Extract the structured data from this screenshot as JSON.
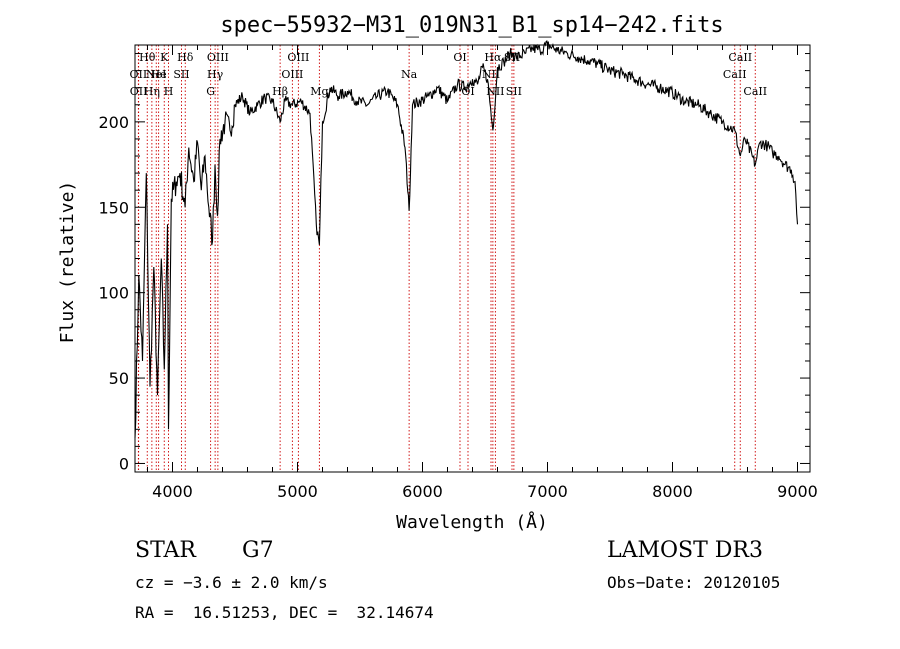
{
  "chart_data": {
    "type": "line",
    "title": "spec−55932−M31_019N31_B1_sp14−242.fits",
    "xlabel": "Wavelength (Å)",
    "ylabel": "Flux (relative)",
    "xlim": [
      3700,
      9100
    ],
    "ylim": [
      -5,
      245
    ],
    "xticks": [
      4000,
      5000,
      6000,
      7000,
      8000,
      9000
    ],
    "yticks": [
      0,
      50,
      100,
      150,
      200
    ],
    "grid": false,
    "series": [
      {
        "name": "spectrum",
        "x": [
          3700,
          3730,
          3760,
          3790,
          3820,
          3850,
          3880,
          3910,
          3934,
          3960,
          3968,
          3990,
          4030,
          4060,
          4101,
          4130,
          4170,
          4200,
          4230,
          4260,
          4290,
          4320,
          4340,
          4360,
          4380,
          4420,
          4460,
          4500,
          4560,
          4620,
          4680,
          4740,
          4800,
          4861,
          4900,
          4960,
          5030,
          5100,
          5150,
          5175,
          5200,
          5260,
          5330,
          5400,
          5480,
          5560,
          5640,
          5720,
          5800,
          5860,
          5893,
          5920,
          5980,
          6050,
          6120,
          6200,
          6280,
          6340,
          6400,
          6440,
          6480,
          6520,
          6563,
          6600,
          6650,
          6700,
          6760,
          6820,
          6880,
          6940,
          7000,
          7080,
          7160,
          7240,
          7320,
          7400,
          7500,
          7600,
          7700,
          7800,
          7900,
          8000,
          8100,
          8200,
          8300,
          8400,
          8498,
          8542,
          8580,
          8662,
          8700,
          8760,
          8800,
          8850,
          8900,
          8950,
          8980,
          9000
        ],
        "values": [
          15,
          110,
          60,
          170,
          45,
          115,
          40,
          120,
          55,
          140,
          20,
          155,
          165,
          170,
          150,
          185,
          165,
          188,
          160,
          180,
          150,
          130,
          175,
          145,
          190,
          200,
          195,
          210,
          215,
          205,
          210,
          214,
          212,
          200,
          212,
          210,
          212,
          205,
          140,
          128,
          200,
          220,
          215,
          218,
          212,
          210,
          215,
          218,
          210,
          185,
          148,
          210,
          212,
          215,
          220,
          212,
          222,
          220,
          225,
          222,
          232,
          225,
          195,
          232,
          235,
          240,
          238,
          240,
          243,
          242,
          245,
          242,
          240,
          238,
          236,
          234,
          230,
          228,
          225,
          222,
          220,
          217,
          212,
          210,
          205,
          200,
          195,
          180,
          190,
          175,
          188,
          186,
          182,
          180,
          175,
          172,
          165,
          140
        ]
      }
    ],
    "lines": [
      {
        "label": "Hθ",
        "wl": 3798,
        "row": 0
      },
      {
        "label": "OII",
        "wl": 3727,
        "row": 1
      },
      {
        "label": "OII",
        "wl": 3729,
        "row": 2
      },
      {
        "label": "K",
        "wl": 3934,
        "row": 0
      },
      {
        "label": "He",
        "wl": 3889,
        "row": 1
      },
      {
        "label": "Hη",
        "wl": 3835,
        "row": 2
      },
      {
        "label": "H",
        "wl": 3968,
        "row": 2
      },
      {
        "label": "Hδ",
        "wl": 4102,
        "row": 0
      },
      {
        "label": "NeI",
        "wl": 3870,
        "row": 1
      },
      {
        "label": "SII",
        "wl": 4072,
        "row": 1
      },
      {
        "label": "OIII",
        "wl": 4363,
        "row": 0
      },
      {
        "label": "Hγ",
        "wl": 4341,
        "row": 1
      },
      {
        "label": "G",
        "wl": 4305,
        "row": 2
      },
      {
        "label": "OIII",
        "wl": 5007,
        "row": 0
      },
      {
        "label": "OIII",
        "wl": 4959,
        "row": 1
      },
      {
        "label": "Hβ",
        "wl": 4861,
        "row": 2
      },
      {
        "label": "Mg",
        "wl": 5175,
        "row": 2
      },
      {
        "label": "Na",
        "wl": 5893,
        "row": 1
      },
      {
        "label": "OI",
        "wl": 6300,
        "row": 0
      },
      {
        "label": "OI",
        "wl": 6364,
        "row": 2
      },
      {
        "label": "Hα",
        "wl": 6563,
        "row": 0
      },
      {
        "label": "NII",
        "wl": 6548,
        "row": 1
      },
      {
        "label": "NII",
        "wl": 6583,
        "row": 2
      },
      {
        "label": "SII",
        "wl": 6716,
        "row": 0
      },
      {
        "label": "SII",
        "wl": 6731,
        "row": 2
      },
      {
        "label": "CaII",
        "wl": 8542,
        "row": 0
      },
      {
        "label": "CaII",
        "wl": 8498,
        "row": 1
      },
      {
        "label": "CaII",
        "wl": 8662,
        "row": 2
      }
    ]
  },
  "info": {
    "type": "STAR",
    "subclass": "G7",
    "survey": "LAMOST DR3",
    "cz": "cz = −3.6 ± 2.0 km/s",
    "obs_date": "Obs−Date: 20120105",
    "radec": "RA =  16.51253, DEC =  32.14674"
  },
  "colors": {
    "axis": "#000000",
    "spectrum": "#000000",
    "line_marker": "#cc0000"
  }
}
